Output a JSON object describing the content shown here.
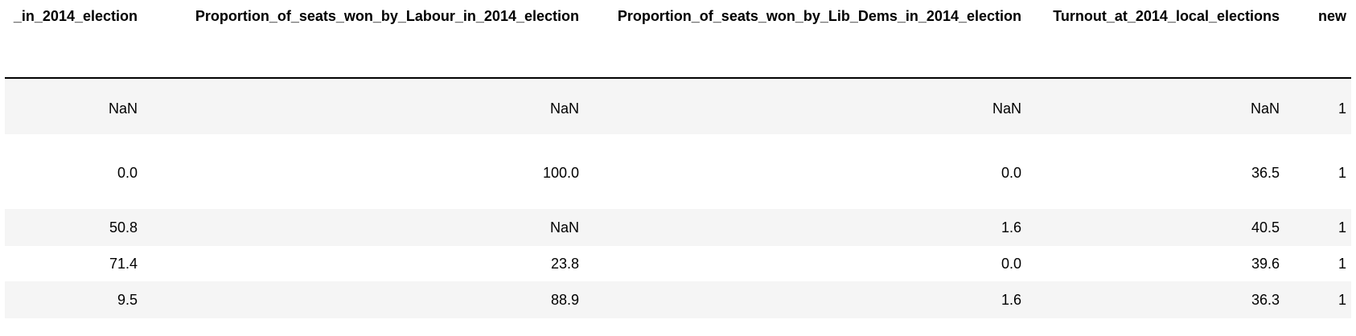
{
  "table": {
    "headers": [
      "_in_2014_election",
      "Proportion_of_seats_won_by_Labour_in_2014_election",
      "Proportion_of_seats_won_by_Lib_Dems_in_2014_election",
      "Turnout_at_2014_local_elections",
      "new"
    ],
    "rows": [
      [
        "NaN",
        "NaN",
        "NaN",
        "NaN",
        "1"
      ],
      [
        "0.0",
        "100.0",
        "0.0",
        "36.5",
        "1"
      ],
      [
        "50.8",
        "NaN",
        "1.6",
        "40.5",
        "1"
      ],
      [
        "71.4",
        "23.8",
        "0.0",
        "39.6",
        "1"
      ],
      [
        "9.5",
        "88.9",
        "1.6",
        "36.3",
        "1"
      ]
    ]
  }
}
